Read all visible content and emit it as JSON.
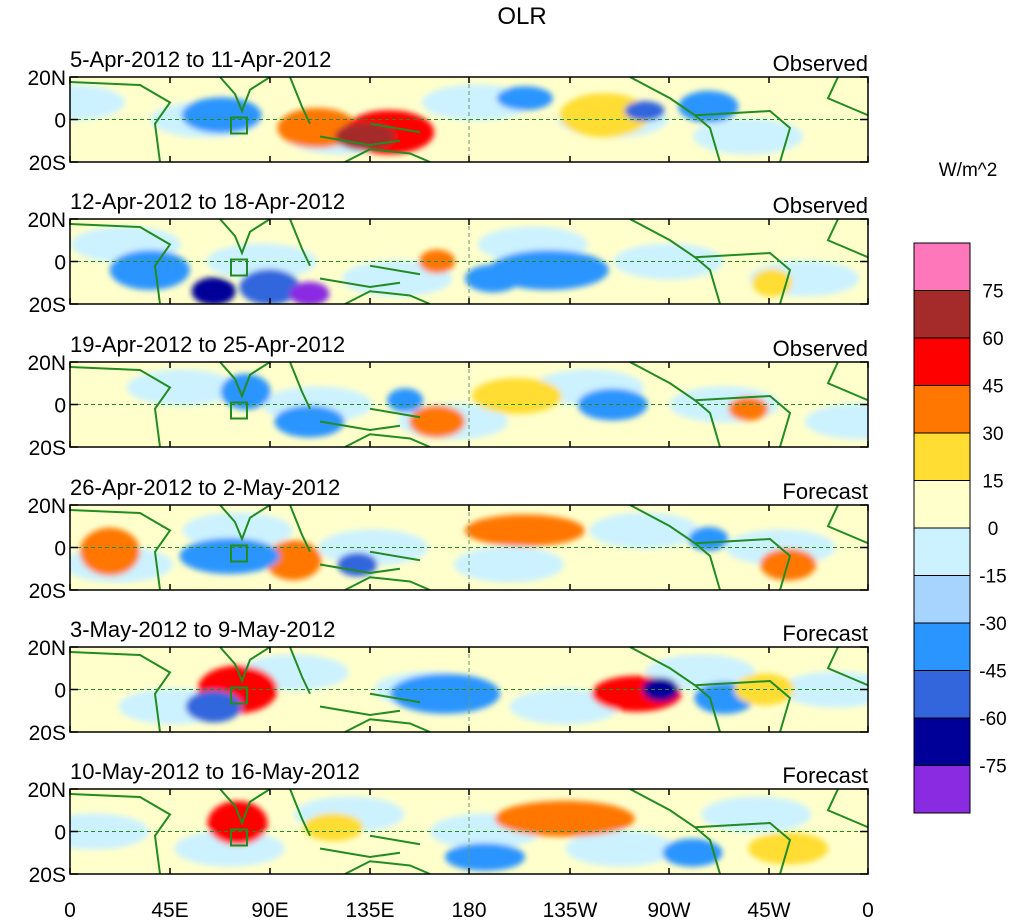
{
  "figure": {
    "title": "OLR"
  },
  "latitude_ticks": [
    "20N",
    "0",
    "20S"
  ],
  "longitude_ticks": [
    "0",
    "45E",
    "90E",
    "135E",
    "180",
    "135W",
    "90W",
    "45W",
    "0"
  ],
  "panels": [
    {
      "period": "5-Apr-2012 to 11-Apr-2012",
      "type": "Observed"
    },
    {
      "period": "12-Apr-2012 to 18-Apr-2012",
      "type": "Observed"
    },
    {
      "period": "19-Apr-2012 to 25-Apr-2012",
      "type": "Observed"
    },
    {
      "period": "26-Apr-2012 to 2-May-2012",
      "type": "Forecast"
    },
    {
      "period": "3-May-2012 to 9-May-2012",
      "type": "Forecast"
    },
    {
      "period": "10-May-2012 to 16-May-2012",
      "type": "Forecast"
    }
  ],
  "colorbar": {
    "units": "W/m^2",
    "levels": [
      "75",
      "60",
      "45",
      "30",
      "15",
      "0",
      "-15",
      "-30",
      "-45",
      "-60",
      "-75"
    ],
    "colors": [
      "#ff77bb",
      "#a52a2a",
      "#ff0000",
      "#ff7700",
      "#ffdd33",
      "#ffffcc",
      "#ccf2ff",
      "#a6d4ff",
      "#2b95ff",
      "#3366dd",
      "#000099",
      "#8a2be2"
    ]
  },
  "style": {
    "land_outline": "#228b22",
    "equator_line": "#228b22"
  }
}
